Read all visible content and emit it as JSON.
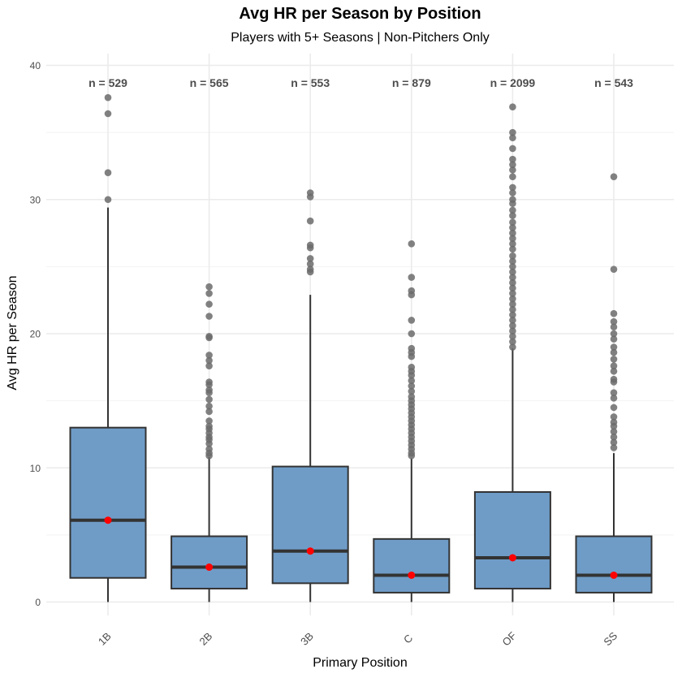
{
  "chart_data": {
    "type": "box",
    "title": "Avg HR per Season by Position",
    "subtitle": "Players with 5+ Seasons | Non-Pitchers Only",
    "xlabel": "Primary Position",
    "ylabel": "Avg HR per Season",
    "ylim": [
      0,
      40
    ],
    "yticks": [
      0,
      10,
      20,
      30,
      40
    ],
    "grid": true,
    "colors": {
      "box_fill": "#6f9cc7",
      "box_stroke": "#333333",
      "median_dot": "#ff0000",
      "outlier": "#6b6b6b",
      "grid": "#ebebeb",
      "axis_text": "#4d4d4d"
    },
    "categories": [
      "1B",
      "2B",
      "3B",
      "C",
      "OF",
      "SS"
    ],
    "boxes": [
      {
        "category": "1B",
        "n_label": "n = 529",
        "lower_whisker": 0,
        "q1": 1.8,
        "median": 6.1,
        "q3": 13.0,
        "upper_whisker": 29.4,
        "mean": 6.1,
        "outliers": [
          37.6,
          36.4,
          32.0,
          30.0
        ]
      },
      {
        "category": "2B",
        "n_label": "n = 565",
        "lower_whisker": 0,
        "q1": 1.0,
        "median": 2.6,
        "q3": 4.9,
        "upper_whisker": 10.8,
        "mean": 2.6,
        "outliers": [
          23.5,
          23.0,
          22.2,
          21.3,
          19.8,
          19.7,
          18.4,
          18.0,
          17.6,
          16.4,
          16.2,
          15.8,
          15.6,
          15.1,
          14.6,
          14.2,
          13.5,
          13.1,
          12.9,
          12.6,
          12.3,
          12.1,
          11.8,
          11.4,
          11.1,
          10.9
        ]
      },
      {
        "category": "3B",
        "n_label": "n = 553",
        "lower_whisker": 0,
        "q1": 1.4,
        "median": 3.8,
        "q3": 10.1,
        "upper_whisker": 22.9,
        "mean": 3.8,
        "outliers": [
          30.5,
          30.2,
          28.4,
          26.6,
          26.4,
          25.6,
          25.2,
          24.8,
          24.6
        ]
      },
      {
        "category": "C",
        "n_label": "n = 879",
        "lower_whisker": 0,
        "q1": 0.7,
        "median": 2.0,
        "q3": 4.7,
        "upper_whisker": 10.7,
        "mean": 2.0,
        "outliers": [
          26.7,
          24.2,
          23.2,
          22.9,
          21.0,
          20.0,
          18.9,
          18.6,
          18.3,
          17.5,
          17.2,
          16.9,
          16.5,
          16.1,
          15.7,
          15.3,
          15.0,
          14.7,
          14.4,
          14.1,
          13.8,
          13.5,
          13.2,
          12.9,
          12.6,
          12.3,
          12.0,
          11.7,
          11.4,
          11.1,
          10.9
        ]
      },
      {
        "category": "OF",
        "n_label": "n = 2099",
        "lower_whisker": 0,
        "q1": 1.0,
        "median": 3.3,
        "q3": 8.2,
        "upper_whisker": 18.9,
        "mean": 3.3,
        "outliers": [
          36.9,
          35.0,
          34.6,
          33.8,
          33.0,
          32.6,
          32.2,
          31.7,
          30.9,
          30.5,
          30.0,
          29.7,
          29.2,
          28.8,
          28.3,
          27.9,
          27.5,
          27.1,
          26.7,
          26.3,
          25.8,
          25.4,
          25.0,
          24.6,
          24.2,
          23.8,
          23.4,
          23.0,
          22.6,
          22.2,
          21.8,
          21.4,
          21.0,
          20.6,
          20.2,
          19.8,
          19.4,
          19.0
        ]
      },
      {
        "category": "SS",
        "n_label": "n = 543",
        "lower_whisker": 0,
        "q1": 0.7,
        "median": 2.0,
        "q3": 4.9,
        "upper_whisker": 11.1,
        "mean": 2.0,
        "outliers": [
          31.7,
          24.8,
          21.5,
          20.9,
          20.5,
          20.0,
          19.6,
          19.0,
          18.6,
          18.1,
          17.6,
          17.2,
          16.6,
          16.4,
          15.6,
          15.2,
          14.5,
          13.8,
          13.4,
          13.1,
          12.7,
          12.3,
          11.9,
          11.5
        ]
      }
    ]
  }
}
